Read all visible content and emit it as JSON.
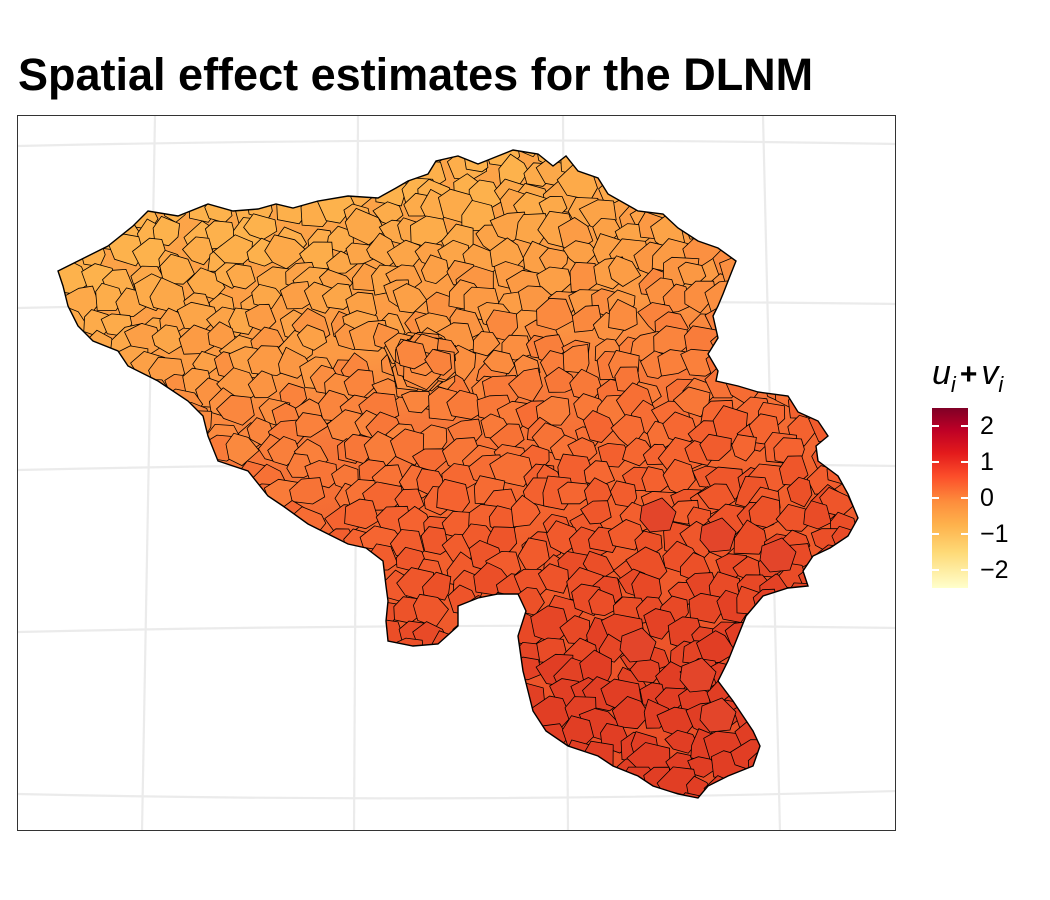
{
  "title": "Spatial effect estimates for the DLNM",
  "legend": {
    "title_u": "u",
    "title_sub_u": "i",
    "title_plus": "+",
    "title_v": "v",
    "title_sub_v": "i",
    "ticks": [
      "2",
      "1",
      "0",
      "−1",
      "−2"
    ],
    "tick_values": [
      2,
      1,
      0,
      -1,
      -2
    ],
    "range": [
      -2.5,
      2.5
    ]
  },
  "map": {
    "region": "Belgium",
    "unit": "municipalities",
    "colors": {
      "low": "#ffffcc",
      "mid_low": "#feb24c",
      "mid": "#fd8d3c",
      "mid_high": "#fc4e2a",
      "high": "#800026",
      "north_fill": "#fdaa4a",
      "south_fill": "#f05a2a",
      "border": "#000000",
      "graticule": "#ebebeb"
    }
  }
}
